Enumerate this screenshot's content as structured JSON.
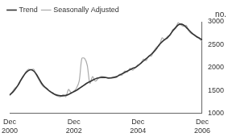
{
  "chart_data": {
    "type": "line",
    "y_label": "no.",
    "categories": [
      "Dec 2000",
      null,
      null,
      null,
      null,
      null,
      null,
      null,
      null,
      null,
      null,
      null,
      null,
      null,
      null,
      null,
      null,
      null,
      null,
      null,
      null,
      null,
      null,
      null,
      "Dec 2002",
      null,
      null,
      null,
      null,
      null,
      null,
      null,
      null,
      null,
      null,
      null,
      null,
      null,
      null,
      null,
      null,
      null,
      null,
      null,
      null,
      null,
      null,
      null,
      "Dec 2004",
      null,
      null,
      null,
      null,
      null,
      null,
      null,
      null,
      null,
      null,
      null,
      null,
      null,
      null,
      null,
      null,
      null,
      null,
      null,
      null,
      null,
      null,
      null,
      "Dec 2006"
    ],
    "series": [
      {
        "name": "Trend",
        "color": "#333333",
        "values": [
          1400,
          1450,
          1520,
          1600,
          1700,
          1800,
          1880,
          1930,
          1950,
          1920,
          1850,
          1750,
          1650,
          1580,
          1530,
          1480,
          1440,
          1410,
          1390,
          1380,
          1380,
          1390,
          1410,
          1440,
          1470,
          1500,
          1540,
          1580,
          1620,
          1660,
          1690,
          1720,
          1750,
          1770,
          1780,
          1780,
          1780,
          1770,
          1770,
          1780,
          1800,
          1830,
          1860,
          1890,
          1920,
          1950,
          1980,
          2000,
          2040,
          2090,
          2140,
          2190,
          2240,
          2290,
          2350,
          2420,
          2500,
          2560,
          2610,
          2650,
          2720,
          2800,
          2870,
          2930,
          2950,
          2930,
          2880,
          2820,
          2760,
          2710,
          2670,
          2640,
          2600
        ]
      },
      {
        "name": "Seasonally Adjusted",
        "color": "#aaaaaa",
        "values": [
          1380,
          1470,
          1550,
          1600,
          1720,
          1790,
          1900,
          1960,
          1950,
          1960,
          1830,
          1720,
          1620,
          1560,
          1520,
          1470,
          1450,
          1400,
          1370,
          1360,
          1400,
          1360,
          1520,
          1450,
          1480,
          1550,
          1700,
          2200,
          2200,
          2050,
          1650,
          1800,
          1700,
          1750,
          1800,
          1800,
          1780,
          1760,
          1780,
          1800,
          1780,
          1850,
          1830,
          1920,
          1900,
          1980,
          1940,
          2000,
          2060,
          2080,
          2180,
          2150,
          2250,
          2250,
          2370,
          2450,
          2480,
          2650,
          2600,
          2680,
          2700,
          2830,
          2850,
          2980,
          2930,
          2900,
          2920,
          2800,
          2740,
          2720,
          2680,
          2620,
          2580
        ]
      }
    ],
    "ylim": [
      1000,
      3000
    ],
    "yticks": [
      1000,
      1500,
      2000,
      2500,
      3000
    ],
    "grid": false,
    "legend": "top-left"
  }
}
